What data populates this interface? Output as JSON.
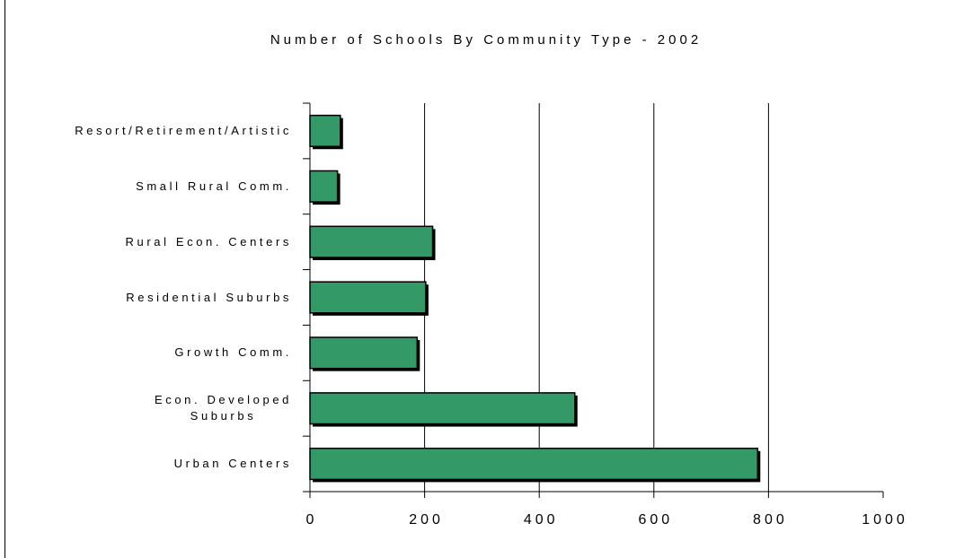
{
  "chart_data": {
    "type": "barh",
    "title": "Number of Schools By Community Type - 2002",
    "categories": [
      "Resort/Retirement/Artistic",
      "Small Rural Comm.",
      "Rural Econ. Centers",
      "Residential Suburbs",
      "Growth Comm.",
      "Econ. Developed\nSuburbs",
      "Urban Centers"
    ],
    "values": [
      53,
      48,
      214,
      202,
      187,
      462,
      781
    ],
    "color": "#339966",
    "xlim": [
      0,
      1000
    ],
    "xticks": [
      0,
      200,
      400,
      600,
      800,
      1000
    ],
    "grid": true
  }
}
